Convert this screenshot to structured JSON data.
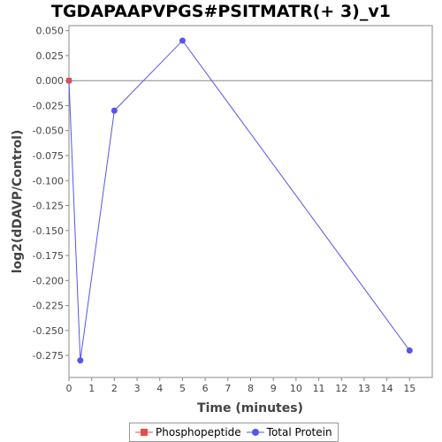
{
  "chart_data": {
    "type": "line",
    "title": "TGDAPAAPVPGS#PSITMATR(+ 3)_v1",
    "xlabel": "Time (minutes)",
    "ylabel": "log2(dDAVP/Control)",
    "xlim": [
      0,
      16
    ],
    "ylim": [
      -0.297,
      0.055
    ],
    "x_ticks": [
      0,
      1,
      2,
      3,
      4,
      5,
      6,
      7,
      8,
      9,
      10,
      11,
      12,
      13,
      14,
      15
    ],
    "y_ticks": [
      0.05,
      0.025,
      0.0,
      -0.025,
      -0.05,
      -0.075,
      -0.1,
      -0.125,
      -0.15,
      -0.175,
      -0.2,
      -0.225,
      -0.25,
      -0.275
    ],
    "y_tick_labels": [
      "0.050",
      "0.025",
      "0.000",
      "-0.025",
      "-0.050",
      "-0.075",
      "-0.100",
      "-0.125",
      "-0.150",
      "-0.175",
      "-0.200",
      "-0.225",
      "-0.250",
      "-0.275"
    ],
    "zero_line": 0.0,
    "grid": false,
    "legend_position": "bottom",
    "series": [
      {
        "name": "Phosphopeptide",
        "color": "#e05050",
        "marker": "square",
        "points": [
          {
            "x": 0,
            "y": 0.0
          }
        ]
      },
      {
        "name": "Total Protein",
        "color": "#5555ee",
        "marker": "circle",
        "points": [
          {
            "x": 0,
            "y": 0.0
          },
          {
            "x": 0.5,
            "y": -0.28
          },
          {
            "x": 2,
            "y": -0.03
          },
          {
            "x": 5,
            "y": 0.04
          },
          {
            "x": 15,
            "y": -0.27
          }
        ]
      }
    ]
  }
}
